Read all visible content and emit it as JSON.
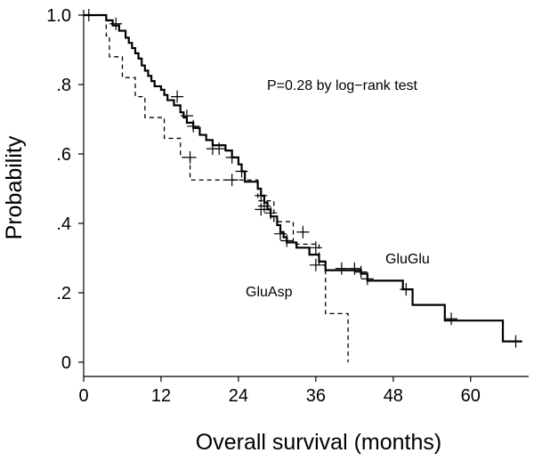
{
  "chart_data": {
    "type": "line",
    "subtype": "kaplan-meier-survival",
    "title": "",
    "xlabel": "Overall survival (months)",
    "ylabel": "Probability",
    "xlim": [
      0,
      69
    ],
    "ylim": [
      0,
      1.0
    ],
    "x_ticks": [
      0,
      12,
      24,
      36,
      48,
      60
    ],
    "x_tick_labels": [
      "0",
      "12",
      "24",
      "36",
      "48",
      "60"
    ],
    "y_ticks": [
      0,
      0.2,
      0.4,
      0.6,
      0.8,
      1.0
    ],
    "y_tick_labels": [
      "0",
      ".2",
      ".4",
      ".6",
      ".8",
      "1.0"
    ],
    "grid": false,
    "annotation": "P=0.28 by log−rank test",
    "series": [
      {
        "name": "GluGlu",
        "line_style": "solid",
        "color": "#000000",
        "steps": [
          [
            0,
            1.0
          ],
          [
            3.5,
            0.985
          ],
          [
            4.5,
            0.97
          ],
          [
            5.5,
            0.955
          ],
          [
            6.5,
            0.935
          ],
          [
            7,
            0.92
          ],
          [
            7.5,
            0.905
          ],
          [
            8,
            0.89
          ],
          [
            8.5,
            0.875
          ],
          [
            9,
            0.855
          ],
          [
            9.5,
            0.84
          ],
          [
            10,
            0.825
          ],
          [
            10.5,
            0.81
          ],
          [
            11,
            0.795
          ],
          [
            12,
            0.785
          ],
          [
            12.5,
            0.77
          ],
          [
            13,
            0.755
          ],
          [
            14,
            0.74
          ],
          [
            15,
            0.72
          ],
          [
            15.5,
            0.705
          ],
          [
            16,
            0.69
          ],
          [
            17,
            0.675
          ],
          [
            18,
            0.655
          ],
          [
            19,
            0.64
          ],
          [
            20,
            0.625
          ],
          [
            22,
            0.61
          ],
          [
            23,
            0.59
          ],
          [
            24,
            0.57
          ],
          [
            24.5,
            0.55
          ],
          [
            25,
            0.52
          ],
          [
            27,
            0.5
          ],
          [
            27.5,
            0.48
          ],
          [
            28,
            0.46
          ],
          [
            28.5,
            0.44
          ],
          [
            29,
            0.42
          ],
          [
            30,
            0.395
          ],
          [
            30.5,
            0.375
          ],
          [
            31,
            0.36
          ],
          [
            31.5,
            0.345
          ],
          [
            33,
            0.33
          ],
          [
            35,
            0.31
          ],
          [
            36.5,
            0.29
          ],
          [
            37.5,
            0.265
          ],
          [
            43,
            0.255
          ],
          [
            44,
            0.235
          ],
          [
            49.5,
            0.21
          ],
          [
            51,
            0.165
          ],
          [
            56,
            0.12
          ],
          [
            65,
            0.06
          ],
          [
            68,
            0.06
          ]
        ],
        "censored": [
          [
            0.8,
            1.0
          ],
          [
            5,
            0.975
          ],
          [
            14.5,
            0.765
          ],
          [
            16,
            0.71
          ],
          [
            17,
            0.68
          ],
          [
            20,
            0.615
          ],
          [
            21,
            0.615
          ],
          [
            23,
            0.59
          ],
          [
            24.5,
            0.55
          ],
          [
            27.5,
            0.48
          ],
          [
            28,
            0.45
          ],
          [
            29,
            0.43
          ],
          [
            30.5,
            0.37
          ],
          [
            31.5,
            0.35
          ],
          [
            34,
            0.375
          ],
          [
            36,
            0.33
          ],
          [
            40,
            0.27
          ],
          [
            42,
            0.27
          ],
          [
            43,
            0.26
          ],
          [
            44,
            0.24
          ],
          [
            50,
            0.21
          ],
          [
            57,
            0.125
          ],
          [
            67,
            0.06
          ]
        ]
      },
      {
        "name": "GluAsp",
        "line_style": "dashed",
        "color": "#000000",
        "steps": [
          [
            0,
            1.0
          ],
          [
            3.5,
            0.94
          ],
          [
            4,
            0.88
          ],
          [
            6,
            0.82
          ],
          [
            8,
            0.765
          ],
          [
            9.5,
            0.705
          ],
          [
            12.5,
            0.645
          ],
          [
            15,
            0.59
          ],
          [
            16.5,
            0.525
          ],
          [
            24.5,
            0.525
          ],
          [
            27,
            0.465
          ],
          [
            29.5,
            0.405
          ],
          [
            32.5,
            0.34
          ],
          [
            36.5,
            0.28
          ],
          [
            37.5,
            0.14
          ],
          [
            41,
            0.0
          ]
        ],
        "censored": [
          [
            16.5,
            0.59
          ],
          [
            23,
            0.525
          ],
          [
            27.5,
            0.44
          ],
          [
            36,
            0.28
          ]
        ]
      }
    ]
  }
}
